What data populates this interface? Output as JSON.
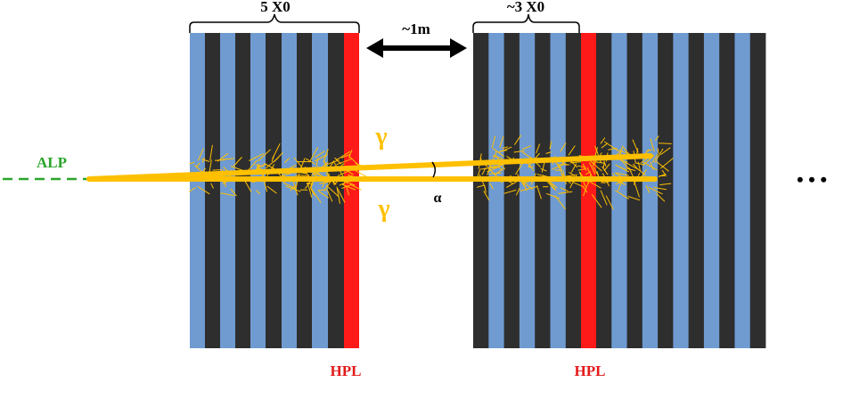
{
  "labels": {
    "alp": "ALP",
    "gamma_top": "γ",
    "gamma_bottom": "γ",
    "alpha": "α",
    "thickness_left": "5 X0",
    "thickness_right": "~3 X0",
    "distance": "~1m",
    "hpl_left": "HPL",
    "hpl_right": "HPL",
    "ellipsis": "• • •"
  },
  "colors": {
    "absorber": "#2e2e2e",
    "scintillator": "#6f9bd1",
    "hpl": "#ff1a1a",
    "alp": "#2aa52a",
    "photon": "#ffc000",
    "hpl_text": "#e31b1b",
    "gamma_text": "#ffc000"
  }
}
